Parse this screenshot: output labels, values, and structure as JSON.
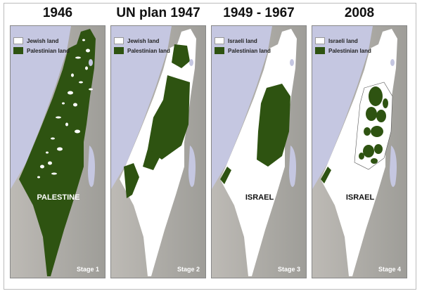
{
  "colors": {
    "sea": "#c5c7e1",
    "land_gray": "#a8a7a2",
    "palestinian": "#2e5311",
    "jewish_israeli": "#ffffff"
  },
  "panels": [
    {
      "title": "1946",
      "legend": [
        "Jewish land",
        "Palestinian land"
      ],
      "label": "PALESTINE",
      "stage": "Stage 1"
    },
    {
      "title": "UN plan 1947",
      "legend": [
        "Jewish land",
        "Palestinian land"
      ],
      "label": "",
      "stage": "Stage 2"
    },
    {
      "title": "1949 - 1967",
      "legend": [
        "Israeli land",
        "Palestinian land"
      ],
      "label": "ISRAEL",
      "stage": "Stage 3"
    },
    {
      "title": "2008",
      "legend": [
        "Israeli land",
        "Palestinian land"
      ],
      "label": "ISRAEL",
      "stage": "Stage 4"
    }
  ]
}
